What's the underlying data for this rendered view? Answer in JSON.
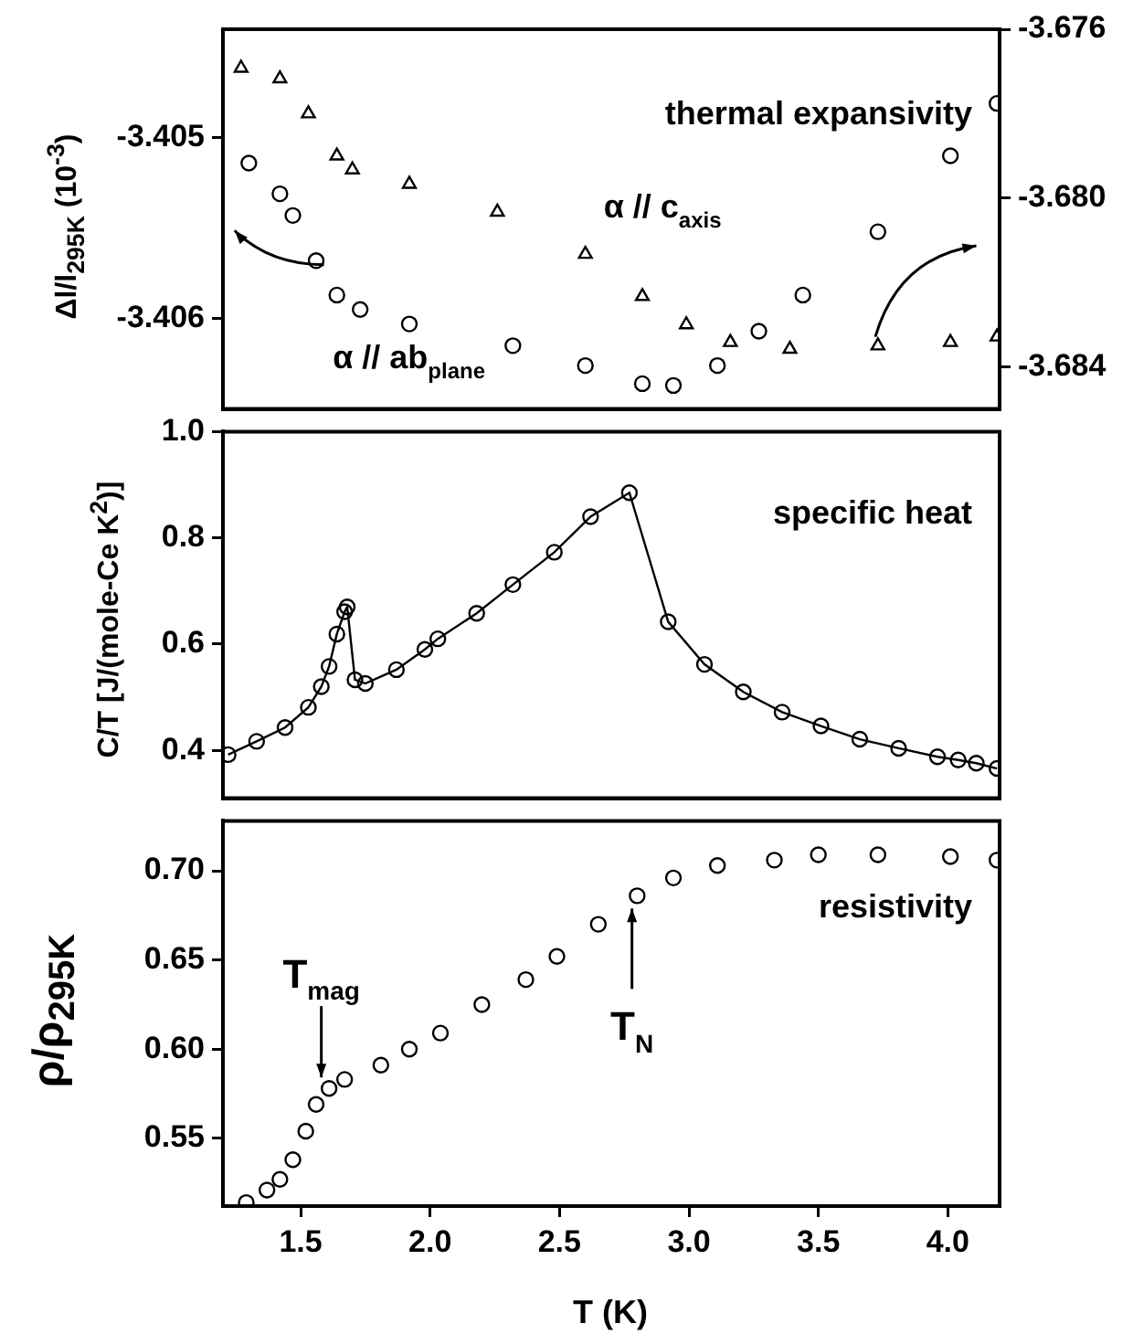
{
  "chart_data": [
    {
      "type": "scatter",
      "ylabel": "Δl/l$_{295K}$ (10$^{-3}$)",
      "xlim": [
        1.2,
        4.2
      ],
      "ylim": [
        -3.4065,
        -3.4044
      ],
      "yticks": [
        -3.405,
        -3.406
      ],
      "y2lim": [
        -3.685,
        -3.676
      ],
      "y2ticks": [
        -3.676,
        {
          "value": -3.68,
          "label": "-3.680"
        },
        -3.684
      ],
      "tick_labels": "y",
      "annotations": [
        "thermal expansivity"
      ],
      "series": [
        {
          "name": "α // c$_{axis}$",
          "color": "#000000",
          "axis": "y2",
          "marker": "triangle",
          "x": [
            1.27,
            1.42,
            1.53,
            1.64,
            1.7,
            1.92,
            2.26,
            2.6,
            2.82,
            2.99,
            3.16,
            3.39,
            3.73,
            4.01,
            4.19
          ],
          "values": [
            -3.67692,
            -3.67717,
            -3.678,
            -3.679,
            -3.67933,
            -3.67967,
            -3.68033,
            -3.68133,
            -3.68233,
            -3.683,
            -3.68342,
            -3.68358,
            -3.6835,
            -3.68342,
            -3.68329
          ]
        },
        {
          "name": "α // ab$_{plane}$",
          "color": "#000000",
          "marker": "circle",
          "x": [
            1.3,
            1.42,
            1.47,
            1.56,
            1.64,
            1.73,
            1.92,
            2.32,
            2.6,
            2.82,
            2.94,
            3.11,
            3.27,
            3.44,
            3.73,
            4.01,
            4.19
          ],
          "values": [
            -3.40514,
            -3.40531,
            -3.40543,
            -3.40568,
            -3.40587,
            -3.40595,
            -3.40603,
            -3.40615,
            -3.40626,
            -3.40636,
            -3.40637,
            -3.40626,
            -3.40607,
            -3.40587,
            -3.40552,
            -3.4051,
            -3.40481
          ]
        }
      ]
    },
    {
      "type": "line",
      "marker": "circle",
      "ylabel": "C/T [J/(mole-Ce K$^{2}$)]",
      "xlim": [
        1.2,
        4.2
      ],
      "ylim": [
        0.31,
        1.0
      ],
      "yticks": [
        0.4,
        0.6,
        0.8,
        {
          "value": 1,
          "label": "1.0"
        }
      ],
      "tick_labels": "y",
      "annotations": [
        "specific heat"
      ],
      "x": [
        1.22,
        1.33,
        1.44,
        1.53,
        1.58,
        1.61,
        1.64,
        1.67,
        1.68,
        1.71,
        1.75,
        1.87,
        1.98,
        2.03,
        2.18,
        2.32,
        2.48,
        2.62,
        2.77,
        2.92,
        3.06,
        3.21,
        3.36,
        3.51,
        3.66,
        3.81,
        3.96,
        4.04,
        4.11,
        4.19
      ],
      "series": [
        {
          "color": "#000000",
          "values": [
            0.392,
            0.417,
            0.443,
            0.481,
            0.52,
            0.558,
            0.619,
            0.661,
            0.67,
            0.533,
            0.526,
            0.552,
            0.59,
            0.61,
            0.658,
            0.712,
            0.773,
            0.84,
            0.885,
            0.642,
            0.562,
            0.51,
            0.472,
            0.446,
            0.421,
            0.404,
            0.388,
            0.382,
            0.376,
            0.366
          ]
        }
      ]
    },
    {
      "type": "scatter",
      "marker": "circle",
      "xlabel": "T (K)",
      "ylabel": "ρ/ρ$_{295K}$",
      "xlim": [
        1.2,
        4.2
      ],
      "xticks": [
        1.5,
        {
          "value": 2,
          "label": "2.0"
        },
        2.5,
        {
          "value": 3,
          "label": "3.0"
        },
        3.5,
        {
          "value": 4,
          "label": "4.0"
        }
      ],
      "ylim": [
        0.512,
        0.728
      ],
      "yticks": [
        0.55,
        {
          "value": 0.6,
          "label": "0.60"
        },
        0.65,
        {
          "value": 0.7,
          "label": "0.70"
        }
      ],
      "annotations": [
        "resistivity",
        {
          "text": "T$_{mag}$",
          "x": 1.58,
          "y": 0.578
        },
        {
          "text": "T$_{N}$",
          "x": 2.78,
          "y": 0.685
        }
      ],
      "x": [
        1.29,
        1.37,
        1.42,
        1.47,
        1.52,
        1.56,
        1.61,
        1.67,
        1.81,
        1.92,
        2.04,
        2.2,
        2.37,
        2.49,
        2.65,
        2.8,
        2.94,
        3.11,
        3.33,
        3.5,
        3.73,
        4.01,
        4.19
      ],
      "series": [
        {
          "color": "#000000",
          "values": [
            0.514,
            0.521,
            0.527,
            0.538,
            0.554,
            0.569,
            0.578,
            0.583,
            0.591,
            0.6,
            0.609,
            0.625,
            0.639,
            0.652,
            0.67,
            0.686,
            0.696,
            0.703,
            0.706,
            0.709,
            0.709,
            0.708,
            0.706
          ]
        }
      ]
    }
  ]
}
